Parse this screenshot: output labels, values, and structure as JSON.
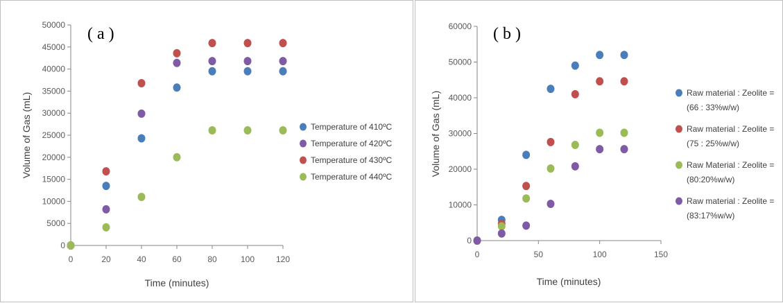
{
  "chart_data": [
    {
      "type": "scatter",
      "label": "( a )",
      "xlabel": "Time (minutes)",
      "ylabel": "Volume of Gas (mL)",
      "xlim": [
        0,
        120
      ],
      "ylim": [
        0,
        50000
      ],
      "x_ticks": [
        0,
        20,
        40,
        60,
        80,
        100,
        120
      ],
      "y_ticks": [
        0,
        5000,
        10000,
        15000,
        20000,
        25000,
        30000,
        35000,
        40000,
        45000,
        50000
      ],
      "grid": false,
      "legend_position": "right",
      "series": [
        {
          "name": "Temperature of 410ºC",
          "color": "#4a7ebb",
          "x": [
            0,
            20,
            40,
            60,
            80,
            100,
            120
          ],
          "y": [
            0,
            13500,
            24300,
            35800,
            39500,
            39500,
            39500
          ]
        },
        {
          "name": "Temperature of 420ºC",
          "color": "#7f5ba6",
          "x": [
            0,
            20,
            40,
            60,
            80,
            100,
            120
          ],
          "y": [
            0,
            8200,
            29900,
            41400,
            41800,
            41800,
            41800
          ]
        },
        {
          "name": "Temperature of 430ºC",
          "color": "#c0504d",
          "x": [
            0,
            20,
            40,
            60,
            80,
            100,
            120
          ],
          "y": [
            0,
            16800,
            36800,
            43600,
            45900,
            45900,
            45900
          ]
        },
        {
          "name": "Temperature of 440ºC",
          "color": "#9bbb59",
          "x": [
            0,
            20,
            40,
            60,
            80,
            100,
            120
          ],
          "y": [
            0,
            4100,
            11000,
            20000,
            26100,
            26100,
            26100
          ]
        }
      ]
    },
    {
      "type": "scatter",
      "label": "( b )",
      "xlabel": "Time (minutes)",
      "ylabel": "Volume  of Gas (mL)",
      "xlim": [
        0,
        150
      ],
      "ylim": [
        0,
        60000
      ],
      "x_ticks": [
        0,
        50,
        100,
        150
      ],
      "y_ticks": [
        0,
        10000,
        20000,
        30000,
        40000,
        50000,
        60000
      ],
      "grid": false,
      "legend_position": "right",
      "series": [
        {
          "name": [
            "Raw material : Zeolite =",
            "(66 : 33%w/w)"
          ],
          "color": "#4a7ebb",
          "x": [
            0,
            20,
            40,
            60,
            80,
            100,
            120
          ],
          "y": [
            0,
            5800,
            24000,
            42500,
            49000,
            52000,
            52000
          ]
        },
        {
          "name": [
            "Raw material : Zeolite =",
            "(75 : 25%w/w)"
          ],
          "color": "#c0504d",
          "x": [
            0,
            20,
            40,
            60,
            80,
            100,
            120
          ],
          "y": [
            0,
            4700,
            15300,
            27600,
            41000,
            44600,
            44600
          ]
        },
        {
          "name": [
            "Raw Material : Zeolite =",
            "(80:20%w/w)"
          ],
          "color": "#9bbb59",
          "x": [
            0,
            20,
            40,
            60,
            80,
            100,
            120
          ],
          "y": [
            0,
            4000,
            11800,
            20200,
            26800,
            30200,
            30200
          ]
        },
        {
          "name": [
            "Raw material : Zeolite =",
            "(83:17%w/w)"
          ],
          "color": "#7f5ba6",
          "x": [
            0,
            20,
            40,
            60,
            80,
            100,
            120
          ],
          "y": [
            0,
            2000,
            4200,
            10300,
            20800,
            25600,
            25600
          ]
        }
      ]
    }
  ]
}
